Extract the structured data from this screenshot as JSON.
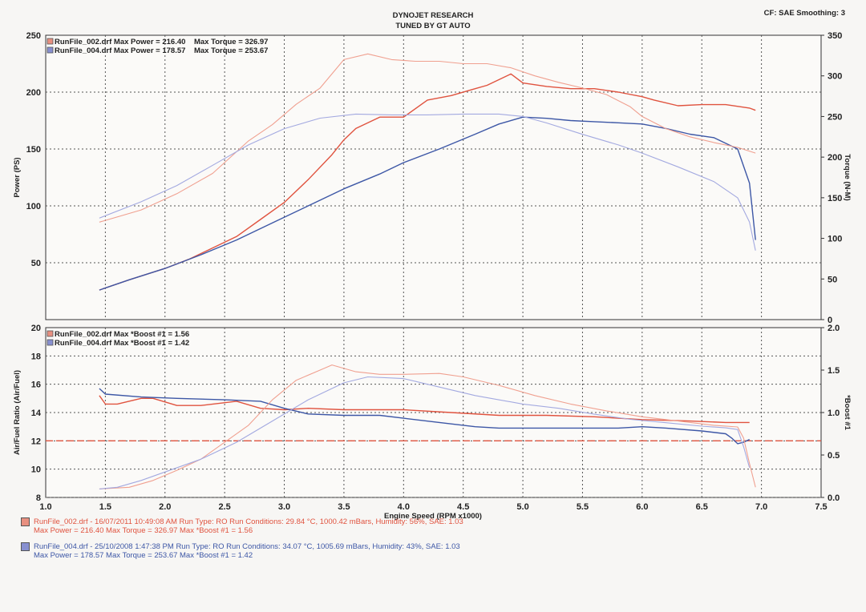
{
  "header": {
    "title": "DYNOJET RESEARCH",
    "subtitle": "TUNED BY GT AUTO",
    "settings": "CF: SAE  Smoothing: 3"
  },
  "colors": {
    "red": "#e0533f",
    "redLight": "#f0a090",
    "blue": "#3d57a6",
    "blueLight": "#a3a9e0"
  },
  "chart_data": [
    {
      "type": "line",
      "title": "",
      "xlabel": "Engine Speed (RPM x1000)",
      "ylabel": "Power (PS)",
      "y2label": "Torque (N-M)",
      "xlim": [
        1.0,
        7.5
      ],
      "ylim": [
        0,
        250
      ],
      "y2lim": [
        0,
        350
      ],
      "xticks": [
        "1.0",
        "1.5",
        "2.0",
        "2.5",
        "3.0",
        "3.5",
        "4.0",
        "4.5",
        "5.0",
        "5.5",
        "6.0",
        "6.5",
        "7.0",
        "7.5"
      ],
      "yticks": [
        "50",
        "100",
        "150",
        "200",
        "250"
      ],
      "y2ticks": [
        "0",
        "50",
        "100",
        "150",
        "200",
        "250",
        "300",
        "350"
      ],
      "grid": true,
      "legend": [
        "RunFile_002.drf Max Power = 216.40    Max Torque = 326.97",
        "RunFile_004.drf Max Power = 178.57    Max Torque = 253.67"
      ],
      "series": [
        {
          "name": "RunFile_002.drf Power",
          "axis": "left",
          "color": "#e0533f",
          "x": [
            1.45,
            1.7,
            2.0,
            2.2,
            2.4,
            2.6,
            2.8,
            3.0,
            3.2,
            3.4,
            3.5,
            3.6,
            3.8,
            4.0,
            4.2,
            4.4,
            4.6,
            4.7,
            4.9,
            5.0,
            5.2,
            5.4,
            5.6,
            5.8,
            6.0,
            6.1,
            6.3,
            6.5,
            6.7,
            6.9,
            6.95
          ],
          "y": [
            26,
            35,
            45,
            53,
            63,
            73,
            88,
            103,
            123,
            145,
            158,
            168,
            178,
            178,
            193,
            197,
            203,
            206,
            216,
            208,
            205,
            203,
            203,
            200,
            196,
            193,
            188,
            189,
            189,
            186,
            184
          ]
        },
        {
          "name": "RunFile_004.drf Power",
          "axis": "left",
          "color": "#3d57a6",
          "x": [
            1.45,
            1.7,
            2.0,
            2.3,
            2.6,
            2.9,
            3.2,
            3.5,
            3.8,
            4.0,
            4.3,
            4.6,
            4.8,
            5.0,
            5.2,
            5.4,
            5.6,
            5.8,
            6.0,
            6.2,
            6.4,
            6.6,
            6.8,
            6.9,
            6.95
          ],
          "y": [
            26,
            35,
            45,
            57,
            70,
            85,
            100,
            115,
            128,
            138,
            150,
            163,
            172,
            178,
            177,
            175,
            174,
            173,
            172,
            168,
            163,
            160,
            150,
            120,
            70
          ]
        },
        {
          "name": "RunFile_002.drf Torque",
          "axis": "right",
          "color": "#f0a090",
          "x": [
            1.45,
            1.8,
            2.1,
            2.4,
            2.7,
            2.9,
            3.1,
            3.3,
            3.5,
            3.7,
            3.9,
            4.1,
            4.3,
            4.5,
            4.7,
            4.9,
            5.1,
            5.3,
            5.5,
            5.7,
            5.9,
            6.0,
            6.2,
            6.4,
            6.6,
            6.8,
            6.95
          ],
          "y": [
            120,
            135,
            155,
            180,
            220,
            240,
            265,
            285,
            320,
            327,
            320,
            318,
            318,
            315,
            315,
            310,
            300,
            292,
            285,
            277,
            262,
            250,
            235,
            225,
            218,
            212,
            205
          ]
        },
        {
          "name": "RunFile_004.drf Torque",
          "axis": "right",
          "color": "#a3a9e0",
          "x": [
            1.45,
            1.8,
            2.1,
            2.4,
            2.7,
            3.0,
            3.3,
            3.6,
            3.9,
            4.2,
            4.5,
            4.8,
            5.0,
            5.2,
            5.5,
            5.8,
            6.0,
            6.3,
            6.6,
            6.8,
            6.9,
            6.95
          ],
          "y": [
            125,
            145,
            165,
            190,
            215,
            235,
            248,
            253,
            252,
            252,
            253,
            253,
            250,
            242,
            228,
            215,
            205,
            188,
            170,
            150,
            120,
            85
          ]
        }
      ]
    },
    {
      "type": "line",
      "title": "",
      "xlabel": "Engine Speed (RPM x1000)",
      "ylabel": "Air/Fuel Ratio (Air/Fuel)",
      "y2label": "*Boost #1",
      "xlim": [
        1.0,
        7.5
      ],
      "ylim": [
        8,
        20
      ],
      "y2lim": [
        0.0,
        2.0
      ],
      "xticks": [
        "1.0",
        "1.5",
        "2.0",
        "2.5",
        "3.0",
        "3.5",
        "4.0",
        "4.5",
        "5.0",
        "5.5",
        "6.0",
        "6.5",
        "7.0",
        "7.5"
      ],
      "yticks": [
        "8",
        "10",
        "12",
        "14",
        "16",
        "18",
        "20"
      ],
      "y2ticks": [
        "0.0",
        "0.5",
        "1.0",
        "1.5",
        "2.0"
      ],
      "reference_line": 12,
      "grid": true,
      "legend": [
        "RunFile_002.drf Max *Boost #1 = 1.56",
        "RunFile_004.drf Max *Boost #1 = 1.42"
      ],
      "series": [
        {
          "name": "RunFile_002.drf Air/Fuel",
          "axis": "left",
          "color": "#e0533f",
          "x": [
            1.45,
            1.5,
            1.6,
            1.8,
            1.9,
            2.1,
            2.3,
            2.6,
            2.8,
            3.0,
            3.2,
            3.5,
            3.8,
            4.0,
            4.4,
            4.8,
            5.2,
            5.6,
            6.0,
            6.4,
            6.7,
            6.9
          ],
          "y": [
            15.2,
            14.6,
            14.6,
            15.0,
            15.0,
            14.5,
            14.5,
            14.8,
            14.3,
            14.2,
            14.3,
            14.2,
            14.2,
            14.2,
            14.0,
            13.8,
            13.8,
            13.7,
            13.5,
            13.4,
            13.3,
            13.3
          ]
        },
        {
          "name": "RunFile_004.drf Air/Fuel",
          "axis": "left",
          "color": "#3d57a6",
          "x": [
            1.45,
            1.5,
            1.8,
            2.1,
            2.5,
            2.8,
            3.0,
            3.2,
            3.5,
            3.8,
            4.0,
            4.3,
            4.6,
            4.8,
            5.0,
            5.4,
            5.8,
            6.0,
            6.2,
            6.5,
            6.7,
            6.75,
            6.8,
            6.85,
            6.9
          ],
          "y": [
            15.7,
            15.3,
            15.1,
            15.0,
            14.9,
            14.8,
            14.3,
            13.9,
            13.8,
            13.8,
            13.6,
            13.3,
            13.0,
            12.9,
            12.9,
            12.9,
            12.9,
            13.0,
            12.9,
            12.7,
            12.5,
            12.2,
            11.8,
            11.9,
            12.1
          ]
        },
        {
          "name": "RunFile_002.drf *Boost #1",
          "axis": "right",
          "color": "#f0a090",
          "x": [
            1.45,
            1.7,
            1.9,
            2.1,
            2.3,
            2.5,
            2.7,
            2.9,
            3.1,
            3.3,
            3.4,
            3.6,
            3.8,
            4.0,
            4.3,
            4.5,
            4.8,
            5.1,
            5.4,
            5.7,
            6.0,
            6.3,
            6.6,
            6.8,
            6.85,
            6.9,
            6.95
          ],
          "y": [
            0.1,
            0.12,
            0.2,
            0.32,
            0.45,
            0.65,
            0.85,
            1.15,
            1.38,
            1.5,
            1.56,
            1.48,
            1.45,
            1.45,
            1.46,
            1.42,
            1.32,
            1.2,
            1.1,
            1.02,
            0.95,
            0.9,
            0.85,
            0.83,
            0.7,
            0.4,
            0.12
          ]
        },
        {
          "name": "RunFile_004.drf *Boost #1",
          "axis": "right",
          "color": "#a3a9e0",
          "x": [
            1.45,
            1.6,
            1.8,
            2.0,
            2.3,
            2.6,
            2.9,
            3.2,
            3.5,
            3.7,
            4.0,
            4.3,
            4.6,
            5.0,
            5.3,
            5.6,
            5.9,
            6.2,
            6.5,
            6.7,
            6.8,
            6.85,
            6.9
          ],
          "y": [
            0.1,
            0.12,
            0.2,
            0.3,
            0.45,
            0.65,
            0.9,
            1.15,
            1.35,
            1.42,
            1.4,
            1.3,
            1.2,
            1.1,
            1.05,
            0.98,
            0.92,
            0.88,
            0.84,
            0.82,
            0.8,
            0.6,
            0.35
          ]
        }
      ]
    }
  ],
  "footer": {
    "run1": {
      "line1": "RunFile_002.drf - 16/07/2011 10:49:08 AM  Run Type: RO  Run Conditions: 29.84 °C, 1000.42 mBars,  Humidity:  56%, SAE: 1.03",
      "line2": "Max Power = 216.40  Max Torque = 326.97  Max *Boost #1 = 1.56"
    },
    "run2": {
      "line1": "RunFile_004.drf - 25/10/2008 1:47:38 PM  Run Type: RO  Run Conditions: 34.07 °C, 1005.69 mBars,  Humidity:  43%, SAE: 1.03",
      "line2": "Max Power = 178.57  Max Torque = 253.67  Max *Boost #1 = 1.42"
    }
  }
}
